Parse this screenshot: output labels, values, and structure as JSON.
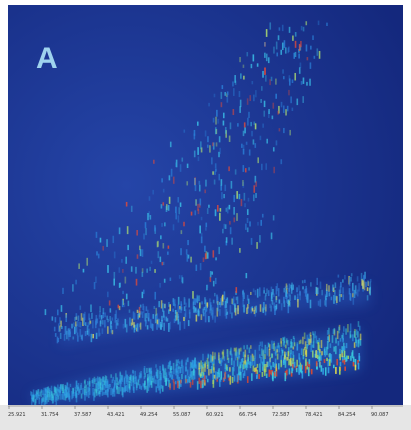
{
  "figure": {
    "panel_label": "A",
    "x_tick_labels": [
      "25.921",
      "31.754",
      "37.587",
      "43.421",
      "49.254",
      "55.087",
      "60.921",
      "66.754",
      "72.587",
      "78.421",
      "84.254",
      "90.087"
    ]
  }
}
